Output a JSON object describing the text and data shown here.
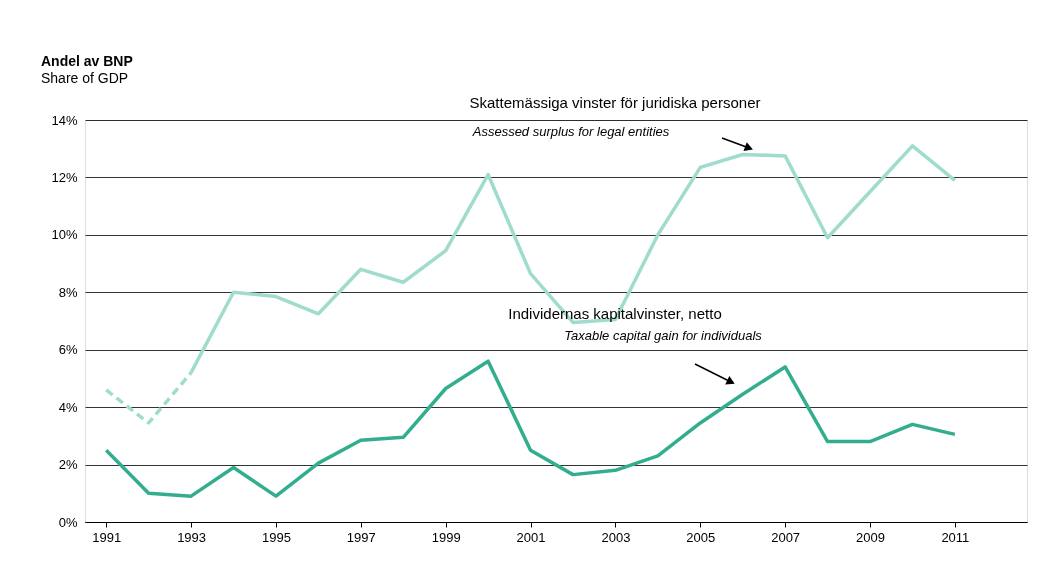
{
  "chart_data": {
    "type": "line",
    "title": "Andel av BNP",
    "subtitle": "Share of GDP",
    "x": [
      1991,
      1992,
      1993,
      1994,
      1995,
      1996,
      1997,
      1998,
      1999,
      2000,
      2001,
      2002,
      2003,
      2004,
      2005,
      2006,
      2007,
      2008,
      2009,
      2010,
      2011
    ],
    "series": [
      {
        "color": "#9fdccd",
        "line_style": "dashed",
        "values": [
          4.6,
          3.45,
          5.2,
          null,
          null,
          null,
          null,
          null,
          null,
          null,
          null,
          null,
          null,
          null,
          null,
          null,
          null,
          null,
          null,
          null,
          null
        ]
      },
      {
        "color": "#9fdccd",
        "line_style": "solid",
        "values": [
          null,
          null,
          5.2,
          8.0,
          7.85,
          7.25,
          8.8,
          8.35,
          9.45,
          12.1,
          8.65,
          6.95,
          7.05,
          10.0,
          12.35,
          12.8,
          12.75,
          9.9,
          11.5,
          13.1,
          11.9
        ]
      },
      {
        "color": "#32ae8f",
        "line_style": "solid",
        "values": [
          2.5,
          1.0,
          0.9,
          1.9,
          0.9,
          2.05,
          2.85,
          2.95,
          4.65,
          5.6,
          2.5,
          1.65,
          1.8,
          2.3,
          3.45,
          4.45,
          5.4,
          2.8,
          2.8,
          3.4,
          3.05
        ]
      }
    ],
    "xlim": [
      1990.5,
      2012.7
    ],
    "xticks": [
      1991,
      1993,
      1995,
      1997,
      1999,
      2001,
      2003,
      2005,
      2007,
      2009,
      2011
    ],
    "ylim": [
      0,
      14
    ],
    "yticks": [
      {
        "value": 0,
        "label": "0%"
      },
      {
        "value": 2,
        "label": "2%"
      },
      {
        "value": 4,
        "label": "4%"
      },
      {
        "value": 6,
        "label": "6%"
      },
      {
        "value": 8,
        "label": "8%"
      },
      {
        "value": 10,
        "label": "10%"
      },
      {
        "value": 12,
        "label": "12%"
      },
      {
        "value": 14,
        "label": "14%"
      }
    ],
    "grid": "y",
    "marker": "none",
    "annotations": [
      "Skattemässiga vinster för juridiska personer",
      "Assessed surplus for legal entities",
      "Individernas kapitalvinster, netto",
      "Taxable capital gain for individuals"
    ]
  }
}
